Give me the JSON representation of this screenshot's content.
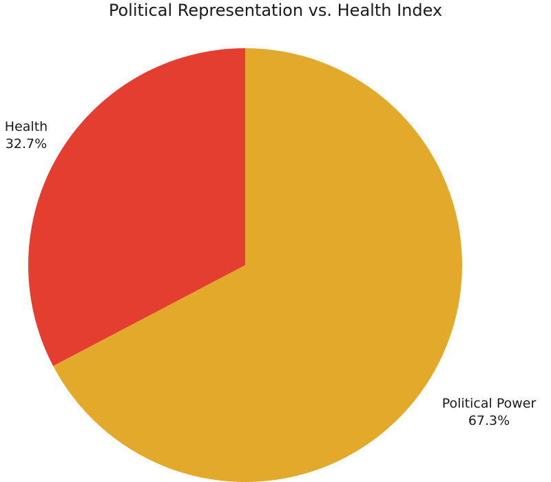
{
  "chart_data": {
    "type": "pie",
    "title": "Political Representation vs. Health Index",
    "start": "12 o'clock",
    "direction": "clockwise",
    "slices": [
      {
        "label": "Political Power",
        "value": 67.3,
        "value_label": "67.3%",
        "color": "#E2A92B"
      },
      {
        "label": "Health",
        "value": 32.7,
        "value_label": "32.7%",
        "color": "#E33E2F"
      }
    ]
  }
}
